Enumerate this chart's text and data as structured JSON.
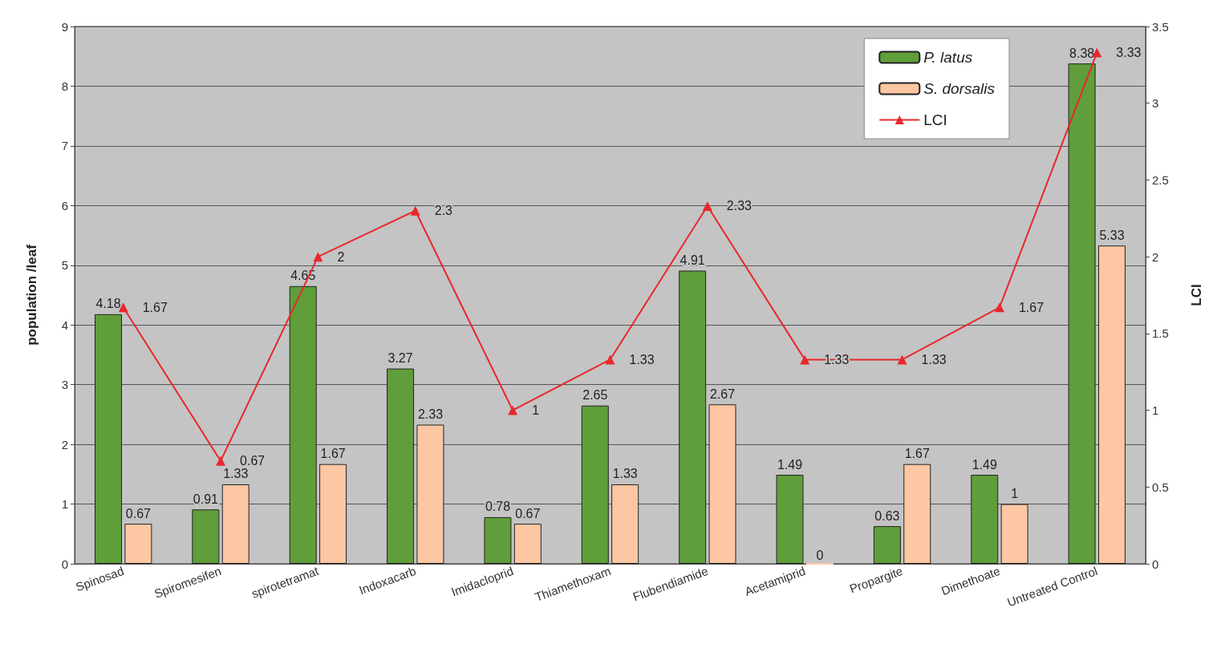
{
  "chart_data": {
    "type": "bar",
    "ylabel": "population /leaf",
    "y2label": "LCI",
    "categories": [
      "Spinosad",
      "Spiromesifen",
      "spirotetramat",
      "Indoxacarb",
      "Imidacloprid",
      "Thiamethoxam",
      "Flubendiamide",
      "Acetamiprid",
      "Propargite",
      "Dimethoate",
      "Untreated Control"
    ],
    "series": [
      {
        "name": "P. latus",
        "color": "#5f9e3a",
        "values": [
          4.18,
          0.91,
          4.65,
          3.27,
          0.78,
          2.65,
          4.91,
          1.49,
          0.63,
          1.49,
          8.38
        ]
      },
      {
        "name": "S. dorsalis",
        "color": "#fcc7a2",
        "values": [
          0.67,
          1.33,
          1.67,
          2.33,
          0.67,
          1.33,
          2.67,
          0,
          1.67,
          1,
          5.33
        ]
      },
      {
        "name": "LCI",
        "type": "line",
        "axis": "y2",
        "color": "#e8282c",
        "values": [
          1.67,
          0.67,
          2,
          2.3,
          1,
          1.33,
          2.33,
          1.33,
          1.33,
          1.67,
          3.33
        ]
      }
    ],
    "ylim": [
      0,
      9
    ],
    "yticks": [
      0,
      1,
      2,
      3,
      4,
      5,
      6,
      7,
      8,
      9
    ],
    "y2lim": [
      0,
      3.5
    ],
    "y2ticks": [
      0,
      0.5,
      1,
      1.5,
      2,
      2.5,
      3,
      3.5
    ],
    "grid": "y",
    "legend": "top right",
    "marker": "triangle",
    "line_style": "solid",
    "data_labels": true
  }
}
